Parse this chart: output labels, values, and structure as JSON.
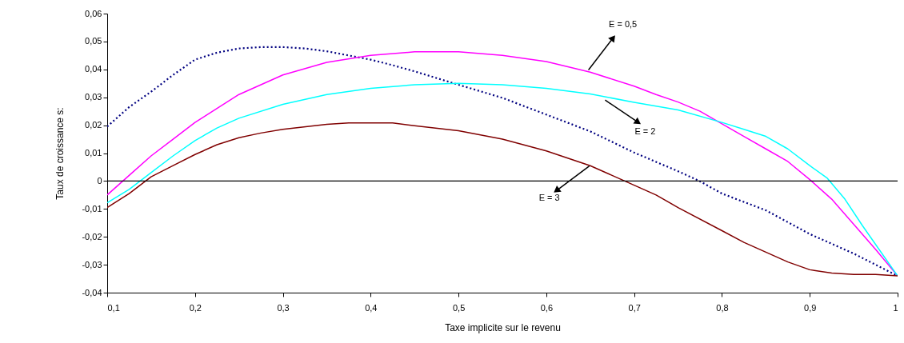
{
  "chart_data": {
    "type": "line",
    "xlabel": "Taxe implicite sur le revenu",
    "ylabel": "Taux de croissance s:",
    "xlim": [
      0.1,
      1
    ],
    "xticks": [
      {
        "value": 0.1,
        "label": "0,1"
      },
      {
        "value": 0.2,
        "label": "0,2"
      },
      {
        "value": 0.3,
        "label": "0,3"
      },
      {
        "value": 0.4,
        "label": "0,4"
      },
      {
        "value": 0.5,
        "label": "0,5"
      },
      {
        "value": 0.6,
        "label": "0,6"
      },
      {
        "value": 0.7,
        "label": "0,7"
      },
      {
        "value": 0.8,
        "label": "0,8"
      },
      {
        "value": 0.9,
        "label": "0,9"
      },
      1
    ],
    "ylim": [
      -0.04,
      0.06
    ],
    "yticks": [
      {
        "value": -0.04,
        "label": "-0,04"
      },
      {
        "value": -0.03,
        "label": "-0,03"
      },
      {
        "value": -0.02,
        "label": "-0,02"
      },
      {
        "value": -0.01,
        "label": "-0,01"
      },
      0,
      {
        "value": 0.01,
        "label": "0,01"
      },
      {
        "value": 0.02,
        "label": "0,02"
      },
      {
        "value": 0.03,
        "label": "0,03"
      },
      {
        "value": 0.04,
        "label": "0,04"
      },
      {
        "value": 0.05,
        "label": "0,05"
      },
      {
        "value": 0.06,
        "label": "0,06"
      }
    ],
    "grid": false,
    "marker": "none",
    "line_style": "solid",
    "ref_lines": [
      {
        "axis": "y",
        "value": 0,
        "color": "#000000"
      }
    ],
    "annotations": [
      {
        "text": "E = 0,5",
        "x": 0.648,
        "y": 0.0398
      },
      {
        "text": "E = 2",
        "x": 0.667,
        "y": 0.029
      },
      {
        "text": "E = 3",
        "x": 0.649,
        "y": 0.0054
      }
    ],
    "series": [
      {
        "color": "#000080",
        "line_style": "dotted",
        "x": [
          0.1,
          0.125,
          0.15,
          0.175,
          0.2,
          0.225,
          0.25,
          0.275,
          0.3,
          0.325,
          0.35,
          0.4,
          0.425,
          0.45,
          0.5,
          0.55,
          0.6,
          0.65,
          0.7,
          0.75,
          0.775,
          0.8,
          0.85,
          0.9,
          0.95,
          1
        ],
        "values": [
          0.0195,
          0.0265,
          0.032,
          0.038,
          0.0435,
          0.046,
          0.0475,
          0.048,
          0.048,
          0.0475,
          0.0465,
          0.0435,
          0.0415,
          0.0393,
          0.0345,
          0.0298,
          0.0238,
          0.0178,
          0.0102,
          0.0035,
          -0.0001,
          -0.0045,
          -0.0105,
          -0.019,
          -0.026,
          -0.034
        ]
      },
      {
        "color": "#ff00ff",
        "x": [
          0.1,
          0.125,
          0.15,
          0.175,
          0.2,
          0.225,
          0.25,
          0.3,
          0.35,
          0.4,
          0.45,
          0.5,
          0.55,
          0.6,
          0.65,
          0.7,
          0.725,
          0.75,
          0.775,
          0.8,
          0.825,
          0.85,
          0.875,
          0.9,
          0.925,
          0.95,
          0.975,
          1
        ],
        "values": [
          -0.005,
          0.002,
          0.009,
          0.015,
          0.021,
          0.026,
          0.031,
          0.038,
          0.0425,
          0.045,
          0.0463,
          0.0463,
          0.045,
          0.0428,
          0.039,
          0.034,
          0.031,
          0.0283,
          0.025,
          0.0205,
          0.016,
          0.0115,
          0.007,
          0.0005,
          -0.0065,
          -0.0155,
          -0.0245,
          -0.034
        ]
      },
      {
        "color": "#00ffff",
        "x": [
          0.1,
          0.125,
          0.15,
          0.175,
          0.2,
          0.225,
          0.25,
          0.3,
          0.35,
          0.4,
          0.45,
          0.5,
          0.55,
          0.6,
          0.65,
          0.7,
          0.75,
          0.8,
          0.825,
          0.85,
          0.875,
          0.9,
          0.92,
          0.94,
          0.96,
          1
        ],
        "values": [
          -0.0078,
          -0.003,
          0.003,
          0.009,
          0.0145,
          0.019,
          0.0225,
          0.0275,
          0.031,
          0.0332,
          0.0345,
          0.035,
          0.0345,
          0.0332,
          0.0312,
          0.0282,
          0.0255,
          0.021,
          0.0185,
          0.016,
          0.0115,
          0.0055,
          0.001,
          -0.0065,
          -0.016,
          -0.034
        ]
      },
      {
        "color": "#800000",
        "x": [
          0.1,
          0.125,
          0.15,
          0.175,
          0.2,
          0.225,
          0.25,
          0.275,
          0.3,
          0.35,
          0.375,
          0.4,
          0.425,
          0.45,
          0.5,
          0.55,
          0.6,
          0.65,
          0.7,
          0.725,
          0.75,
          0.8,
          0.825,
          0.85,
          0.875,
          0.9,
          0.925,
          0.95,
          0.975,
          1
        ],
        "values": [
          -0.0095,
          -0.0045,
          0.0015,
          0.0055,
          0.0095,
          0.013,
          0.0155,
          0.0172,
          0.0185,
          0.0203,
          0.0208,
          0.0208,
          0.0208,
          0.0198,
          0.018,
          0.015,
          0.0108,
          0.0055,
          -0.0015,
          -0.005,
          -0.0095,
          -0.0178,
          -0.022,
          -0.0255,
          -0.029,
          -0.0318,
          -0.033,
          -0.0335,
          -0.0335,
          -0.034
        ]
      }
    ]
  }
}
